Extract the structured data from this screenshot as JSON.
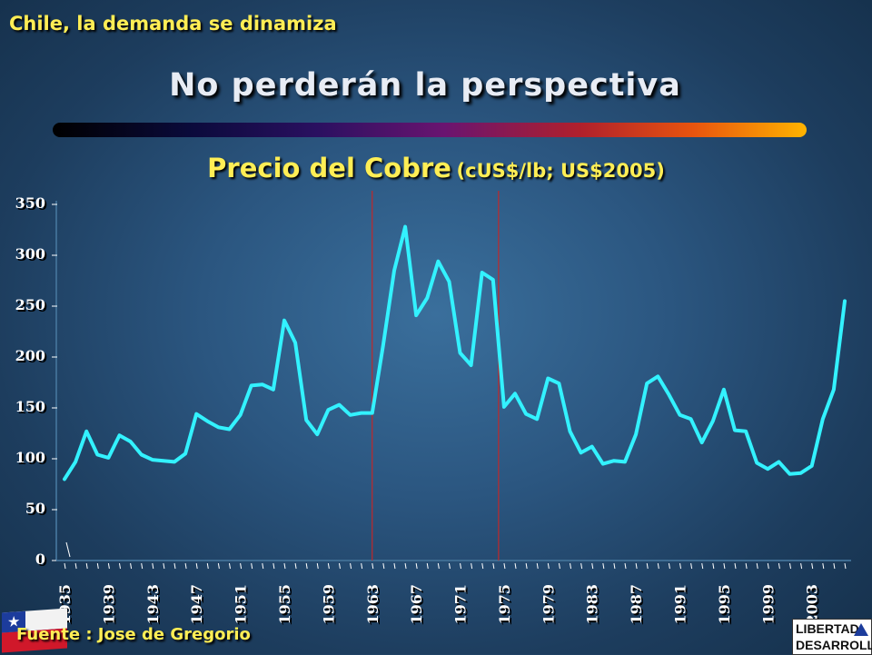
{
  "header": {
    "subtitle": "Chile, la demanda se dinamiza",
    "title": "No perderán la perspectiva"
  },
  "chart_title": {
    "main": "Precio del Cobre",
    "units": "(cUS$/lb; US$2005)"
  },
  "footer": {
    "source": "Fuente : Jose de Gregorio",
    "logo_line1": "LIBERTAD",
    "logo_line2": "DESARROLLO"
  },
  "colors": {
    "line": "#33f2ff",
    "axis_text": "#ffffff",
    "markers": "#c0282a",
    "title_text": "#ffee55"
  },
  "chart_data": {
    "type": "line",
    "title": "Precio del Cobre (cUS$/lb; US$2005)",
    "xlabel": "",
    "ylabel": "",
    "ylim": [
      0,
      350
    ],
    "yticks": [
      0,
      50,
      100,
      150,
      200,
      250,
      300,
      350
    ],
    "x_tick_labels": [
      "1935",
      "1939",
      "1943",
      "1947",
      "1951",
      "1955",
      "1959",
      "1963",
      "1967",
      "1971",
      "1975",
      "1979",
      "1983",
      "1987",
      "1991",
      "1995",
      "1999",
      "2003"
    ],
    "x_start": 1935,
    "x_end": 2006,
    "vertical_markers": [
      1963,
      1974.5
    ],
    "grid": false,
    "series": [
      {
        "x": [
          1935,
          1936,
          1937,
          1938,
          1939,
          1940,
          1941,
          1942,
          1943,
          1944,
          1945,
          1946,
          1947,
          1948,
          1949,
          1950,
          1951,
          1952,
          1953,
          1954,
          1955,
          1956,
          1957,
          1958,
          1959,
          1960,
          1961,
          1962,
          1963,
          1964,
          1965,
          1966,
          1967,
          1968,
          1969,
          1970,
          1971,
          1972,
          1973,
          1974,
          1975,
          1976,
          1977,
          1978,
          1979,
          1980,
          1981,
          1982,
          1983,
          1984,
          1985,
          1986,
          1987,
          1988,
          1989,
          1990,
          1991,
          1992,
          1993,
          1994,
          1995,
          1996,
          1997,
          1998,
          1999,
          2000,
          2001,
          2002,
          2003,
          2004,
          2005,
          2006
        ],
        "values": [
          80,
          97,
          127,
          104,
          101,
          123,
          117,
          104,
          99,
          98,
          97,
          105,
          144,
          137,
          131,
          129,
          143,
          172,
          173,
          168,
          236,
          214,
          138,
          124,
          148,
          153,
          143,
          145,
          145,
          212,
          285,
          328,
          241,
          258,
          294,
          274,
          204,
          192,
          283,
          276,
          151,
          164,
          144,
          139,
          179,
          174,
          127,
          106,
          112,
          95,
          98,
          97,
          124,
          174,
          181,
          163,
          143,
          139,
          116,
          137,
          168,
          128,
          127,
          96,
          90,
          97,
          85,
          86,
          93,
          139,
          168,
          255
        ]
      }
    ]
  }
}
